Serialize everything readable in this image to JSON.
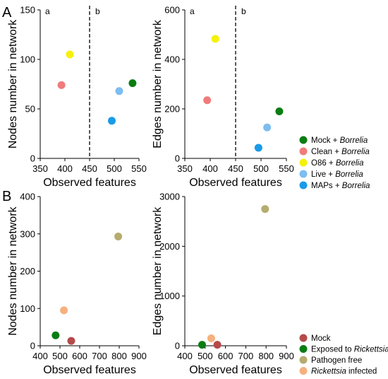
{
  "panel_labels": [
    "A",
    "B"
  ],
  "legend_A": [
    {
      "label": "Mock",
      "suffix": "Borrelia",
      "color": "#0a7d12"
    },
    {
      "label": "Clean",
      "suffix": "Borrelia",
      "color": "#f07b7b"
    },
    {
      "label": "O86",
      "suffix": "Borrelia",
      "color": "#f5f10a"
    },
    {
      "label": "Live",
      "suffix": "Borrelia",
      "color": "#7dbdf0"
    },
    {
      "label": "MAPs",
      "suffix": "Borrelia",
      "color": "#1a9be8"
    }
  ],
  "legend_B": [
    {
      "label": "Mock",
      "color": "#b54a4a"
    },
    {
      "label": "Exposed to",
      "italic": "Rickettsia",
      "color": "#0a7d12"
    },
    {
      "label": "Pathogen free",
      "color": "#b5ac6e"
    },
    {
      "label": "infected",
      "italic": "Rickettsia",
      "italic_first": true,
      "color": "#f5b17d"
    }
  ],
  "chart_data": [
    {
      "id": "A-left",
      "type": "scatter",
      "xlabel": "Observed features",
      "ylabel": "Nodes number in network",
      "xlim": [
        350,
        550
      ],
      "ylim": [
        0,
        150
      ],
      "xticks": [
        350,
        400,
        450,
        500,
        550
      ],
      "yticks": [
        0,
        50,
        100,
        150
      ],
      "divider_x": 450,
      "region_labels": [
        "a",
        "b"
      ],
      "points": [
        {
          "x": 537,
          "y": 76,
          "color": "#0a7d12"
        },
        {
          "x": 393,
          "y": 74,
          "color": "#f07b7b"
        },
        {
          "x": 410,
          "y": 105,
          "color": "#f5f10a"
        },
        {
          "x": 510,
          "y": 68,
          "color": "#7dbdf0"
        },
        {
          "x": 495,
          "y": 38,
          "color": "#1a9be8"
        }
      ]
    },
    {
      "id": "A-right",
      "type": "scatter",
      "xlabel": "Observed features",
      "ylabel": "Edges number in network",
      "xlim": [
        350,
        550
      ],
      "ylim": [
        0,
        600
      ],
      "xticks": [
        350,
        400,
        450,
        500,
        550
      ],
      "yticks": [
        0,
        200,
        400,
        600
      ],
      "divider_x": 450,
      "region_labels": [
        "a",
        "b"
      ],
      "points": [
        {
          "x": 536,
          "y": 190,
          "color": "#0a7d12"
        },
        {
          "x": 394,
          "y": 235,
          "color": "#f07b7b"
        },
        {
          "x": 410,
          "y": 483,
          "color": "#f5f10a"
        },
        {
          "x": 512,
          "y": 125,
          "color": "#7dbdf0"
        },
        {
          "x": 495,
          "y": 43,
          "color": "#1a9be8"
        }
      ]
    },
    {
      "id": "B-left",
      "type": "scatter",
      "xlabel": "Observed features",
      "ylabel": "Nodes number in network",
      "xlim": [
        400,
        900
      ],
      "ylim": [
        0,
        400
      ],
      "xticks": [
        400,
        500,
        600,
        700,
        800,
        900
      ],
      "yticks": [
        0,
        100,
        200,
        300,
        400
      ],
      "points": [
        {
          "x": 557,
          "y": 13,
          "color": "#b54a4a"
        },
        {
          "x": 478,
          "y": 28,
          "color": "#0a7d12"
        },
        {
          "x": 795,
          "y": 293,
          "color": "#b5ac6e"
        },
        {
          "x": 520,
          "y": 95,
          "color": "#f5b17d"
        }
      ]
    },
    {
      "id": "B-right",
      "type": "scatter",
      "xlabel": "Observed features",
      "ylabel": "Edges number in network",
      "xlim": [
        400,
        900
      ],
      "ylim": [
        0,
        3000
      ],
      "xticks": [
        400,
        500,
        600,
        700,
        800,
        900
      ],
      "yticks": [
        0,
        1000,
        2000,
        3000
      ],
      "points": [
        {
          "x": 560,
          "y": 20,
          "color": "#b54a4a"
        },
        {
          "x": 485,
          "y": 20,
          "color": "#0a7d12"
        },
        {
          "x": 795,
          "y": 2750,
          "color": "#b5ac6e"
        },
        {
          "x": 530,
          "y": 150,
          "color": "#f5b17d"
        }
      ]
    }
  ]
}
